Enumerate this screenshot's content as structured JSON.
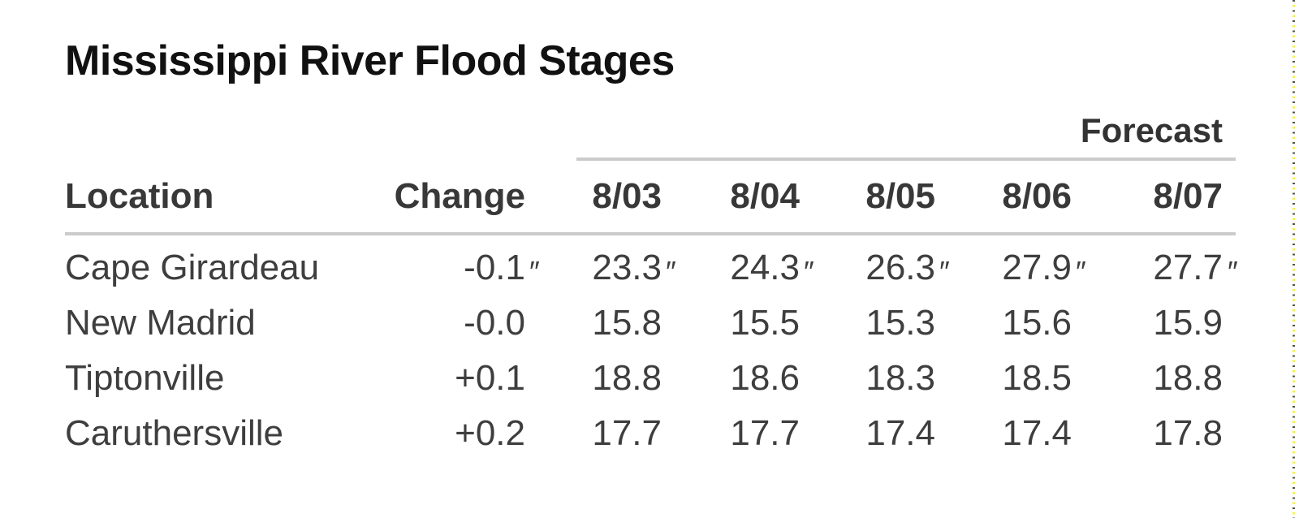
{
  "page": {
    "title": "Mississippi River Flood Stages"
  },
  "table": {
    "forecast_label": "Forecast",
    "header": {
      "location": "Location",
      "change": "Change",
      "dates": [
        "8/03",
        "8/04",
        "8/05",
        "8/06",
        "8/07"
      ]
    },
    "rows": [
      {
        "location": "Cape Girardeau",
        "change": "-0.1",
        "unit": "″",
        "values": [
          "23.3",
          "24.3",
          "26.3",
          "27.9",
          "27.7"
        ]
      },
      {
        "location": "New Madrid",
        "change": "-0.0",
        "unit": "",
        "values": [
          "15.8",
          "15.5",
          "15.3",
          "15.6",
          "15.9"
        ]
      },
      {
        "location": "Tiptonville",
        "change": "+0.1",
        "unit": "",
        "values": [
          "18.8",
          "18.6",
          "18.3",
          "18.5",
          "18.8"
        ]
      },
      {
        "location": "Caruthersville",
        "change": "+0.2",
        "unit": "",
        "values": [
          "17.7",
          "17.7",
          "17.4",
          "17.4",
          "17.8"
        ]
      }
    ]
  },
  "colors": {
    "title_text": "#111111",
    "header_text": "#383838",
    "body_text": "#3e3e3e",
    "rule": "#cbcbcb",
    "edge_marker_dark": "#55544a",
    "edge_marker_yellow": "#f2f24e"
  },
  "chart_data": {
    "type": "table",
    "title": "Mississippi River Flood Stages",
    "group_header": {
      "label": "Forecast",
      "spans": [
        "8/03",
        "8/04",
        "8/05",
        "8/06",
        "8/07"
      ]
    },
    "columns": [
      "Location",
      "Change",
      "8/03",
      "8/04",
      "8/05",
      "8/06",
      "8/07"
    ],
    "unit_mark": "″",
    "rows": [
      {
        "location": "Cape Girardeau",
        "change": -0.1,
        "forecast": [
          23.3,
          24.3,
          26.3,
          27.9,
          27.7
        ]
      },
      {
        "location": "New Madrid",
        "change": -0.0,
        "forecast": [
          15.8,
          15.5,
          15.3,
          15.6,
          15.9
        ]
      },
      {
        "location": "Tiptonville",
        "change": 0.1,
        "forecast": [
          18.8,
          18.6,
          18.3,
          18.5,
          18.8
        ]
      },
      {
        "location": "Caruthersville",
        "change": 0.2,
        "forecast": [
          17.7,
          17.7,
          17.4,
          17.4,
          17.8
        ]
      }
    ]
  }
}
